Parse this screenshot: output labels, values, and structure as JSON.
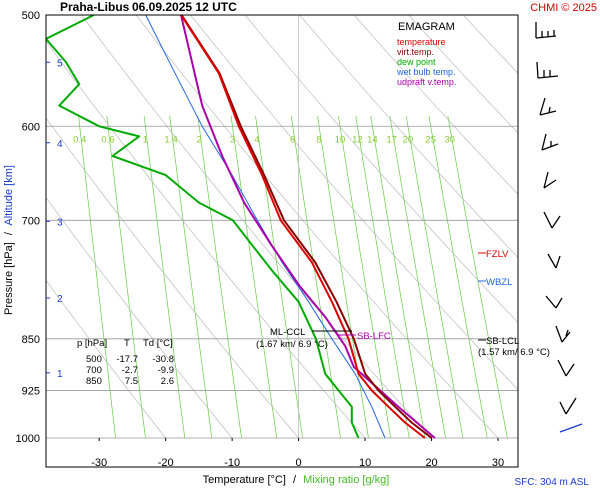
{
  "header": {
    "station": "Praha-Libus",
    "datetime": "06.09.2025 12 UTC",
    "copyright": "CHMI © 2025"
  },
  "footer": {
    "xlabel_temp": "Temperature [°C]",
    "xlabel_sep": "/",
    "xlabel_mix": "Mixing ratio [g/kg]",
    "sfc": "SFC: 304 m ASL"
  },
  "axis_title": {
    "pressure": "Pressure [hPa]",
    "sep": "/",
    "altitude": "Altitude [km]"
  },
  "legend": {
    "title": "EMAGRAM",
    "items": [
      {
        "label": "temperature",
        "color": "#dd0000"
      },
      {
        "label": "virt.temp.",
        "color": "#880000"
      },
      {
        "label": "dew point",
        "color": "#00aa00"
      },
      {
        "label": "wet bulb temp.",
        "color": "#2266dd"
      },
      {
        "label": "udpraft v.temp.",
        "color": "#aa00aa"
      }
    ]
  },
  "table": {
    "headers": [
      "p [hPa]",
      "T",
      "Td [°C]"
    ],
    "rows": [
      [
        "500",
        "-17.7",
        "-30.8"
      ],
      [
        "700",
        "-2.7",
        "-9.9"
      ],
      [
        "850",
        "7.5",
        "2.6"
      ]
    ]
  },
  "annotations": {
    "ml_ccl": "ML-CCL",
    "ml_ccl_sub": "(1.67 km/ 6.9 °C)",
    "sb_lfc": "SB-LFC",
    "fzlv": "FZLV",
    "wbzl": "WBZL",
    "sb_lcl": "SB-LCL",
    "sb_lcl_sub": "(1.57 km/ 6.9 °C)"
  },
  "chart_data": {
    "type": "line",
    "title": "EMAGRAM",
    "y_axis": {
      "label": "Pressure [hPa]",
      "scale": "log",
      "range": [
        1000,
        500
      ],
      "ticks": [
        500,
        600,
        700,
        850,
        925,
        1000
      ]
    },
    "x_axis": {
      "label": "Temperature [°C]",
      "range": [
        -38,
        33
      ],
      "ticks": [
        -30,
        -20,
        -10,
        0,
        10,
        20,
        30
      ]
    },
    "altitude_ticks_km": [
      1,
      2,
      3,
      4,
      5
    ],
    "mixing_ratio_labels": [
      "0.4",
      "0.6",
      "1",
      "1.4",
      "2",
      "3",
      "4",
      "6",
      "8",
      "10",
      "12",
      "14",
      "17",
      "20",
      "25",
      "30"
    ],
    "series": [
      {
        "name": "temperature",
        "color": "#dd0000",
        "points": [
          [
            19,
            1000
          ],
          [
            16,
            975
          ],
          [
            13.5,
            950
          ],
          [
            11,
            925
          ],
          [
            9,
            900
          ],
          [
            7.5,
            850
          ],
          [
            5,
            800
          ],
          [
            2,
            750
          ],
          [
            -2.7,
            700
          ],
          [
            -5.5,
            650
          ],
          [
            -9,
            600
          ],
          [
            -12,
            550
          ],
          [
            -17.7,
            500
          ]
        ]
      },
      {
        "name": "virt.temp.",
        "color": "#880000",
        "points": [
          [
            20,
            1000
          ],
          [
            17,
            975
          ],
          [
            14.5,
            950
          ],
          [
            12,
            925
          ],
          [
            10,
            900
          ],
          [
            8.3,
            850
          ],
          [
            5.7,
            800
          ],
          [
            2.5,
            750
          ],
          [
            -2.2,
            700
          ],
          [
            -5.2,
            650
          ],
          [
            -8.7,
            600
          ],
          [
            -11.9,
            550
          ],
          [
            -17.6,
            500
          ]
        ]
      },
      {
        "name": "dew point",
        "color": "#00aa00",
        "points": [
          [
            9,
            1000
          ],
          [
            8,
            975
          ],
          [
            8,
            950
          ],
          [
            6,
            925
          ],
          [
            4,
            900
          ],
          [
            2.6,
            850
          ],
          [
            0,
            800
          ],
          [
            -4,
            760
          ],
          [
            -9.9,
            700
          ],
          [
            -15,
            680
          ],
          [
            -20,
            650
          ],
          [
            -28,
            630
          ],
          [
            -24,
            610
          ],
          [
            -30,
            600
          ],
          [
            -36,
            580
          ],
          [
            -33,
            560
          ],
          [
            -35,
            540
          ],
          [
            -38,
            520
          ],
          [
            -30.8,
            500
          ]
        ]
      },
      {
        "name": "wet bulb temp.",
        "color": "#2266dd",
        "points": [
          [
            13,
            1000
          ],
          [
            11,
            950
          ],
          [
            8.5,
            900
          ],
          [
            5,
            850
          ],
          [
            1.5,
            800
          ],
          [
            -2.5,
            750
          ],
          [
            -6.2,
            700
          ],
          [
            -10,
            650
          ],
          [
            -14.5,
            600
          ],
          [
            -18.6,
            550
          ],
          [
            -23,
            500
          ]
        ]
      },
      {
        "name": "udpraft v.temp.",
        "color": "#aa00aa",
        "points": [
          [
            20.5,
            1000
          ],
          [
            15,
            950
          ],
          [
            8.3,
            890
          ],
          [
            7,
            860
          ],
          [
            4,
            820
          ],
          [
            0.2,
            780
          ],
          [
            -4,
            730
          ],
          [
            -8.2,
            680
          ],
          [
            -11.5,
            630
          ],
          [
            -14.5,
            580
          ],
          [
            -17.7,
            500
          ]
        ]
      }
    ],
    "levels_hPa": {
      "FZLV": 735,
      "WBZL": 765,
      "SB-LCL": 850,
      "ML-CCL": 846
    }
  }
}
